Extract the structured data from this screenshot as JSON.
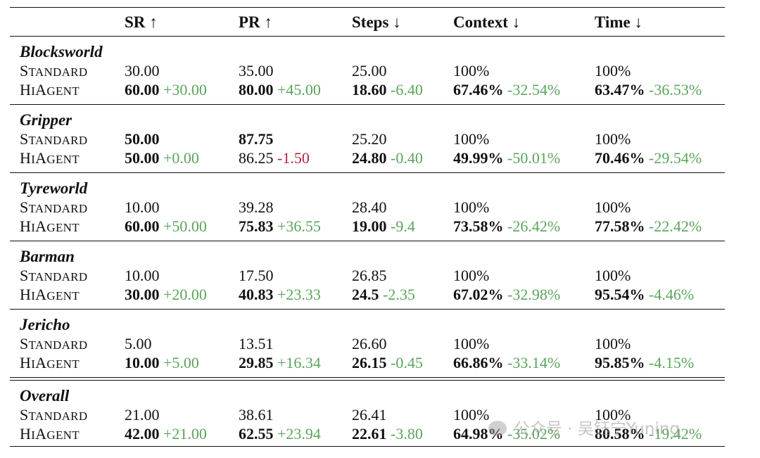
{
  "header": {
    "c1": "SR ↑",
    "c2": "PR ↑",
    "c3": "Steps ↓",
    "c4": "Context ↓",
    "c5": "Time ↓"
  },
  "methods": {
    "standard_first": "S",
    "standard_rest": "tandard",
    "hiagent_a": "H",
    "hiagent_b": "i",
    "hiagent_c": "A",
    "hiagent_d": "gent"
  },
  "groups": [
    {
      "title": "Blocksworld",
      "standard": {
        "sr": "30.00",
        "pr": "35.00",
        "steps": "25.00",
        "context": "100%",
        "time": "100%"
      },
      "hiagent": {
        "sr": "60.00",
        "sr_d": "+30.00",
        "pr": "80.00",
        "pr_d": "+45.00",
        "steps": "18.60",
        "steps_d": "-6.40",
        "context": "67.46%",
        "context_d": "-32.54%",
        "time": "63.47%",
        "time_d": "-36.53%"
      }
    },
    {
      "title": "Gripper",
      "standard": {
        "sr": "50.00",
        "pr": "87.75",
        "steps": "25.20",
        "context": "100%",
        "time": "100%"
      },
      "hiagent": {
        "sr": "50.00",
        "sr_d": "+0.00",
        "pr": "86.25",
        "pr_d": "-1.50",
        "steps": "24.80",
        "steps_d": "-0.40",
        "context": "49.99%",
        "context_d": "-50.01%",
        "time": "70.46%",
        "time_d": "-29.54%"
      }
    },
    {
      "title": "Tyreworld",
      "standard": {
        "sr": "10.00",
        "pr": "39.28",
        "steps": "28.40",
        "context": "100%",
        "time": "100%"
      },
      "hiagent": {
        "sr": "60.00",
        "sr_d": "+50.00",
        "pr": "75.83",
        "pr_d": "+36.55",
        "steps": "19.00",
        "steps_d": "-9.4",
        "context": "73.58%",
        "context_d": "-26.42%",
        "time": "77.58%",
        "time_d": "-22.42%"
      }
    },
    {
      "title": "Barman",
      "standard": {
        "sr": "10.00",
        "pr": "17.50",
        "steps": "26.85",
        "context": "100%",
        "time": "100%"
      },
      "hiagent": {
        "sr": "30.00",
        "sr_d": "+20.00",
        "pr": "40.83",
        "pr_d": "+23.33",
        "steps": "24.5",
        "steps_d": "-2.35",
        "context": "67.02%",
        "context_d": "-32.98%",
        "time": "95.54%",
        "time_d": "-4.46%"
      }
    },
    {
      "title": "Jericho",
      "standard": {
        "sr": "5.00",
        "pr": "13.51",
        "steps": "26.60",
        "context": "100%",
        "time": "100%"
      },
      "hiagent": {
        "sr": "10.00",
        "sr_d": "+5.00",
        "pr": "29.85",
        "pr_d": "+16.34",
        "steps": "26.15",
        "steps_d": "-0.45",
        "context": "66.86%",
        "context_d": "-33.14%",
        "time": "95.85%",
        "time_d": "-4.15%"
      }
    },
    {
      "title": "Overall",
      "standard": {
        "sr": "21.00",
        "pr": "38.61",
        "steps": "26.41",
        "context": "100%",
        "time": "100%"
      },
      "hiagent": {
        "sr": "42.00",
        "sr_d": "+21.00",
        "pr": "62.55",
        "pr_d": "+23.94",
        "steps": "22.61",
        "steps_d": "-3.80",
        "context": "64.98%",
        "context_d": "-35.02%",
        "time": "80.58%",
        "time_d": "-19.42%"
      }
    }
  ],
  "bold_standard": {
    "Gripper": [
      "sr",
      "pr"
    ]
  },
  "bold_hiagent_pr_excluded": [
    "Gripper"
  ],
  "watermark": "公众号 · 吴钰宁Yuning"
}
